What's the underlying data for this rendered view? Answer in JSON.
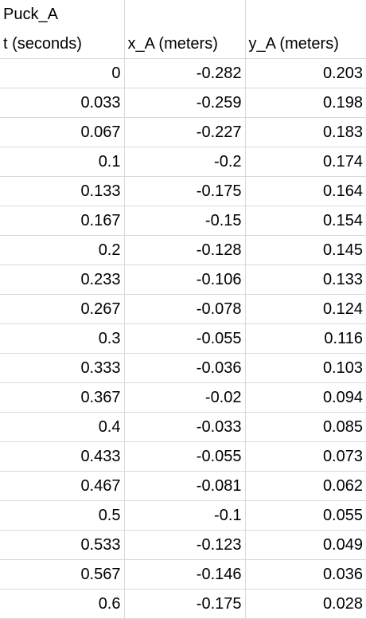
{
  "sheet": {
    "title": "Puck_A",
    "headers": [
      "t (seconds)",
      "x_A (meters)",
      "y_A (meters)"
    ],
    "rows": [
      [
        "0",
        "-0.282",
        "0.203"
      ],
      [
        "0.033",
        "-0.259",
        "0.198"
      ],
      [
        "0.067",
        "-0.227",
        "0.183"
      ],
      [
        "0.1",
        "-0.2",
        "0.174"
      ],
      [
        "0.133",
        "-0.175",
        "0.164"
      ],
      [
        "0.167",
        "-0.15",
        "0.154"
      ],
      [
        "0.2",
        "-0.128",
        "0.145"
      ],
      [
        "0.233",
        "-0.106",
        "0.133"
      ],
      [
        "0.267",
        "-0.078",
        "0.124"
      ],
      [
        "0.3",
        "-0.055",
        "0.116"
      ],
      [
        "0.333",
        "-0.036",
        "0.103"
      ],
      [
        "0.367",
        "-0.02",
        "0.094"
      ],
      [
        "0.4",
        "-0.033",
        "0.085"
      ],
      [
        "0.433",
        "-0.055",
        "0.073"
      ],
      [
        "0.467",
        "-0.081",
        "0.062"
      ],
      [
        "0.5",
        "-0.1",
        "0.055"
      ],
      [
        "0.533",
        "-0.123",
        "0.049"
      ],
      [
        "0.567",
        "-0.146",
        "0.036"
      ],
      [
        "0.6",
        "-0.175",
        "0.028"
      ]
    ]
  }
}
